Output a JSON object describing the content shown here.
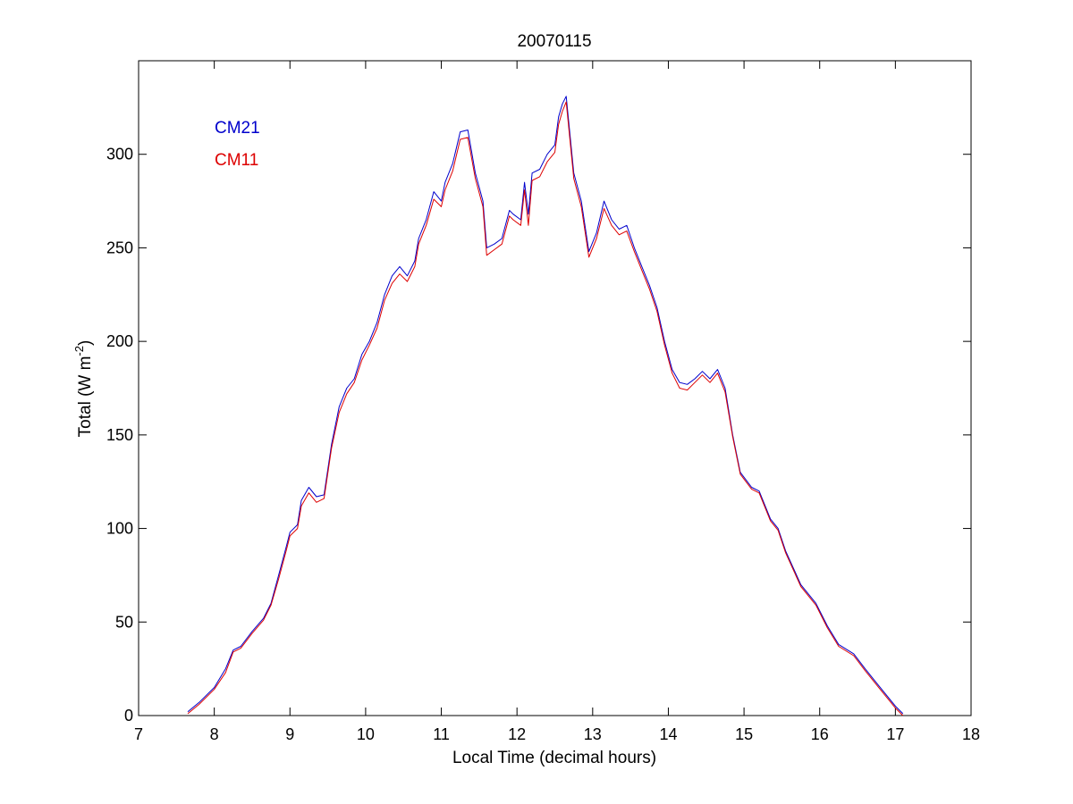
{
  "chart_data": {
    "type": "line",
    "title": "20070115",
    "xlabel": "Local Time (decimal hours)",
    "ylabel_main": "Total (W m",
    "ylabel_sup": "-2",
    "ylabel_end": ")",
    "xlim": [
      7,
      18
    ],
    "ylim": [
      0,
      350
    ],
    "xticks": [
      7,
      8,
      9,
      10,
      11,
      12,
      13,
      14,
      15,
      16,
      17,
      18
    ],
    "yticks": [
      0,
      50,
      100,
      150,
      200,
      250,
      300
    ],
    "grid": false,
    "legend_position": "top-left",
    "series": [
      {
        "name": "CM21",
        "color": "#0000cc",
        "points": [
          [
            7.65,
            2
          ],
          [
            7.8,
            7
          ],
          [
            8.0,
            15
          ],
          [
            8.15,
            25
          ],
          [
            8.25,
            35
          ],
          [
            8.35,
            37
          ],
          [
            8.5,
            45
          ],
          [
            8.65,
            52
          ],
          [
            8.75,
            60
          ],
          [
            8.85,
            75
          ],
          [
            8.95,
            90
          ],
          [
            9.0,
            98
          ],
          [
            9.1,
            102
          ],
          [
            9.15,
            115
          ],
          [
            9.25,
            122
          ],
          [
            9.35,
            117
          ],
          [
            9.45,
            118
          ],
          [
            9.55,
            145
          ],
          [
            9.65,
            165
          ],
          [
            9.75,
            175
          ],
          [
            9.85,
            180
          ],
          [
            9.95,
            193
          ],
          [
            10.05,
            200
          ],
          [
            10.15,
            210
          ],
          [
            10.25,
            225
          ],
          [
            10.35,
            235
          ],
          [
            10.45,
            240
          ],
          [
            10.55,
            235
          ],
          [
            10.65,
            243
          ],
          [
            10.7,
            255
          ],
          [
            10.8,
            265
          ],
          [
            10.9,
            280
          ],
          [
            11.0,
            275
          ],
          [
            11.05,
            285
          ],
          [
            11.15,
            295
          ],
          [
            11.25,
            312
          ],
          [
            11.35,
            313
          ],
          [
            11.45,
            290
          ],
          [
            11.55,
            275
          ],
          [
            11.6,
            250
          ],
          [
            11.7,
            252
          ],
          [
            11.8,
            255
          ],
          [
            11.9,
            270
          ],
          [
            11.95,
            268
          ],
          [
            12.05,
            265
          ],
          [
            12.1,
            285
          ],
          [
            12.15,
            268
          ],
          [
            12.2,
            290
          ],
          [
            12.3,
            292
          ],
          [
            12.4,
            300
          ],
          [
            12.5,
            305
          ],
          [
            12.55,
            320
          ],
          [
            12.6,
            327
          ],
          [
            12.65,
            331
          ],
          [
            12.75,
            290
          ],
          [
            12.85,
            275
          ],
          [
            12.95,
            248
          ],
          [
            13.05,
            258
          ],
          [
            13.15,
            275
          ],
          [
            13.25,
            265
          ],
          [
            13.35,
            260
          ],
          [
            13.45,
            262
          ],
          [
            13.55,
            250
          ],
          [
            13.65,
            240
          ],
          [
            13.75,
            230
          ],
          [
            13.85,
            218
          ],
          [
            13.95,
            200
          ],
          [
            14.05,
            185
          ],
          [
            14.15,
            178
          ],
          [
            14.25,
            177
          ],
          [
            14.35,
            180
          ],
          [
            14.45,
            184
          ],
          [
            14.55,
            180
          ],
          [
            14.65,
            185
          ],
          [
            14.75,
            175
          ],
          [
            14.85,
            150
          ],
          [
            14.95,
            130
          ],
          [
            15.1,
            122
          ],
          [
            15.2,
            120
          ],
          [
            15.35,
            105
          ],
          [
            15.45,
            100
          ],
          [
            15.55,
            88
          ],
          [
            15.75,
            70
          ],
          [
            15.95,
            60
          ],
          [
            16.1,
            48
          ],
          [
            16.25,
            38
          ],
          [
            16.45,
            33
          ],
          [
            16.6,
            25
          ],
          [
            16.8,
            15
          ],
          [
            17.0,
            5
          ],
          [
            17.1,
            1
          ]
        ]
      },
      {
        "name": "CM11",
        "color": "#dd0000",
        "points": [
          [
            7.65,
            1
          ],
          [
            7.8,
            6
          ],
          [
            8.0,
            14
          ],
          [
            8.15,
            23
          ],
          [
            8.25,
            34
          ],
          [
            8.35,
            36
          ],
          [
            8.5,
            44
          ],
          [
            8.65,
            51
          ],
          [
            8.75,
            59
          ],
          [
            8.85,
            73
          ],
          [
            8.95,
            88
          ],
          [
            9.0,
            96
          ],
          [
            9.1,
            100
          ],
          [
            9.15,
            112
          ],
          [
            9.25,
            119
          ],
          [
            9.35,
            114
          ],
          [
            9.45,
            116
          ],
          [
            9.55,
            143
          ],
          [
            9.65,
            162
          ],
          [
            9.75,
            172
          ],
          [
            9.85,
            178
          ],
          [
            9.95,
            190
          ],
          [
            10.05,
            198
          ],
          [
            10.15,
            207
          ],
          [
            10.25,
            222
          ],
          [
            10.35,
            231
          ],
          [
            10.45,
            236
          ],
          [
            10.55,
            232
          ],
          [
            10.65,
            240
          ],
          [
            10.7,
            252
          ],
          [
            10.8,
            262
          ],
          [
            10.9,
            276
          ],
          [
            11.0,
            272
          ],
          [
            11.05,
            281
          ],
          [
            11.15,
            291
          ],
          [
            11.25,
            308
          ],
          [
            11.35,
            309
          ],
          [
            11.45,
            287
          ],
          [
            11.55,
            272
          ],
          [
            11.6,
            246
          ],
          [
            11.7,
            249
          ],
          [
            11.8,
            252
          ],
          [
            11.9,
            267
          ],
          [
            11.95,
            265
          ],
          [
            12.05,
            262
          ],
          [
            12.1,
            281
          ],
          [
            12.15,
            262
          ],
          [
            12.2,
            286
          ],
          [
            12.3,
            288
          ],
          [
            12.4,
            296
          ],
          [
            12.5,
            301
          ],
          [
            12.55,
            316
          ],
          [
            12.6,
            323
          ],
          [
            12.65,
            328
          ],
          [
            12.75,
            287
          ],
          [
            12.85,
            272
          ],
          [
            12.95,
            245
          ],
          [
            13.05,
            255
          ],
          [
            13.15,
            271
          ],
          [
            13.25,
            262
          ],
          [
            13.35,
            257
          ],
          [
            13.45,
            259
          ],
          [
            13.55,
            248
          ],
          [
            13.65,
            238
          ],
          [
            13.75,
            228
          ],
          [
            13.85,
            216
          ],
          [
            13.95,
            198
          ],
          [
            14.05,
            183
          ],
          [
            14.15,
            175
          ],
          [
            14.25,
            174
          ],
          [
            14.35,
            178
          ],
          [
            14.45,
            182
          ],
          [
            14.55,
            178
          ],
          [
            14.65,
            183
          ],
          [
            14.75,
            173
          ],
          [
            14.85,
            149
          ],
          [
            14.95,
            129
          ],
          [
            15.1,
            121
          ],
          [
            15.2,
            119
          ],
          [
            15.35,
            104
          ],
          [
            15.45,
            99
          ],
          [
            15.55,
            87
          ],
          [
            15.75,
            69
          ],
          [
            15.95,
            59
          ],
          [
            16.1,
            47
          ],
          [
            16.25,
            37
          ],
          [
            16.45,
            32
          ],
          [
            16.6,
            24
          ],
          [
            16.8,
            14
          ],
          [
            17.0,
            4
          ],
          [
            17.1,
            0
          ]
        ]
      }
    ]
  }
}
